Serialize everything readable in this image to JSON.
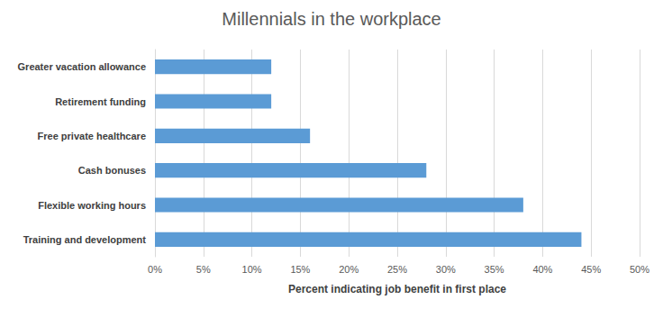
{
  "chart_data": {
    "type": "bar",
    "orientation": "horizontal",
    "title": "Millennials in the workplace",
    "x_label": "Percent indicating job benefit in first place",
    "categories": [
      "Greater vacation allowance",
      "Retirement funding",
      "Free private healthcare",
      "Cash bonuses",
      "Flexible working hours",
      "Training and development"
    ],
    "values": [
      12,
      12,
      16,
      28,
      38,
      44
    ],
    "color": "#5b9bd5",
    "xlim": [
      0,
      50
    ],
    "xticks": [
      {
        "value": 0,
        "label": "0%"
      },
      {
        "value": 5,
        "label": "5%"
      },
      {
        "value": 10,
        "label": "10%"
      },
      {
        "value": 15,
        "label": "15%"
      },
      {
        "value": 20,
        "label": "20%"
      },
      {
        "value": 25,
        "label": "25%"
      },
      {
        "value": 30,
        "label": "30%"
      },
      {
        "value": 35,
        "label": "35%"
      },
      {
        "value": 40,
        "label": "40%"
      },
      {
        "value": 45,
        "label": "45%"
      },
      {
        "value": 50,
        "label": "50%"
      }
    ],
    "grid": true
  }
}
